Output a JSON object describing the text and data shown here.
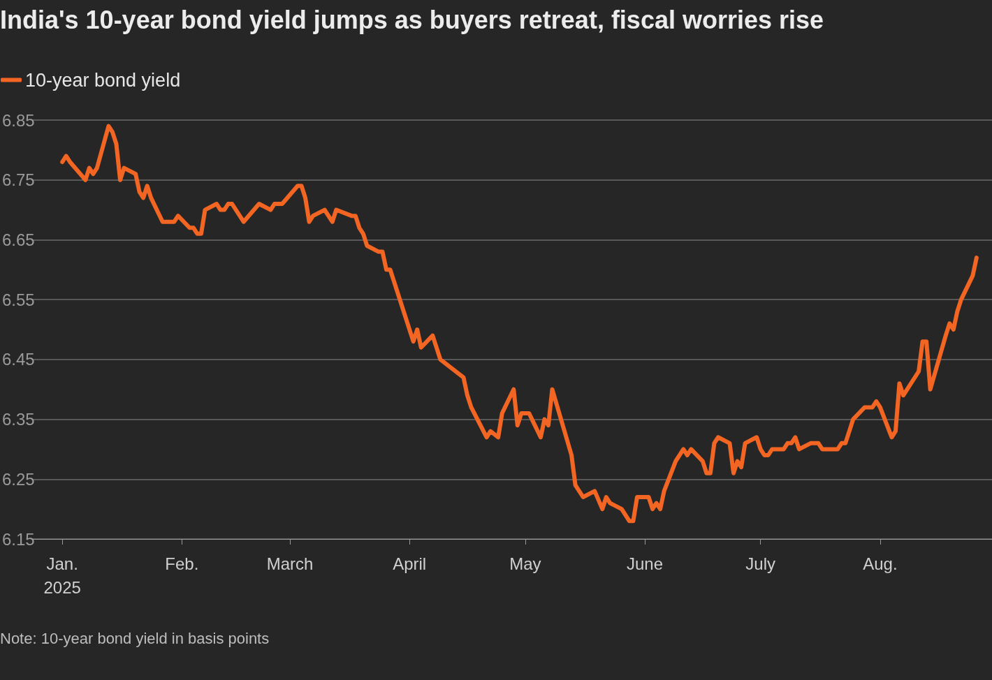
{
  "chart_data": {
    "type": "line",
    "title": "India's 10-year bond yield jumps as buyers retreat, fiscal worries rise",
    "annotations": [
      "Note: 10-year bond yield in basis points"
    ],
    "x": [
      "2025-01-01",
      "2025-01-02",
      "2025-01-03",
      "2025-01-07",
      "2025-01-08",
      "2025-01-09",
      "2025-01-10",
      "2025-01-13",
      "2025-01-14",
      "2025-01-15",
      "2025-01-16",
      "2025-01-17",
      "2025-01-20",
      "2025-01-21",
      "2025-01-22",
      "2025-01-23",
      "2025-01-24",
      "2025-01-27",
      "2025-01-30",
      "2025-01-31",
      "2025-02-03",
      "2025-02-04",
      "2025-02-05",
      "2025-02-06",
      "2025-02-07",
      "2025-02-10",
      "2025-02-11",
      "2025-02-12",
      "2025-02-13",
      "2025-02-14",
      "2025-02-17",
      "2025-02-21",
      "2025-02-24",
      "2025-02-25",
      "2025-02-27",
      "2025-03-03",
      "2025-03-04",
      "2025-03-05",
      "2025-03-06",
      "2025-03-07",
      "2025-03-10",
      "2025-03-12",
      "2025-03-13",
      "2025-03-17",
      "2025-03-18",
      "2025-03-19",
      "2025-03-20",
      "2025-03-21",
      "2025-03-24",
      "2025-03-25",
      "2025-03-26",
      "2025-03-27",
      "2025-04-02",
      "2025-04-03",
      "2025-04-04",
      "2025-04-07",
      "2025-04-09",
      "2025-04-15",
      "2025-04-16",
      "2025-04-17",
      "2025-04-21",
      "2025-04-22",
      "2025-04-24",
      "2025-04-25",
      "2025-04-28",
      "2025-04-29",
      "2025-04-30",
      "2025-05-02",
      "2025-05-05",
      "2025-05-06",
      "2025-05-07",
      "2025-05-08",
      "2025-05-13",
      "2025-05-14",
      "2025-05-16",
      "2025-05-19",
      "2025-05-21",
      "2025-05-22",
      "2025-05-23",
      "2025-05-26",
      "2025-05-28",
      "2025-05-29",
      "2025-05-30",
      "2025-06-02",
      "2025-06-03",
      "2025-06-04",
      "2025-06-05",
      "2025-06-06",
      "2025-06-09",
      "2025-06-11",
      "2025-06-12",
      "2025-06-13",
      "2025-06-16",
      "2025-06-17",
      "2025-06-18",
      "2025-06-19",
      "2025-06-20",
      "2025-06-23",
      "2025-06-24",
      "2025-06-25",
      "2025-06-26",
      "2025-06-27",
      "2025-06-30",
      "2025-07-01",
      "2025-07-02",
      "2025-07-03",
      "2025-07-04",
      "2025-07-07",
      "2025-07-08",
      "2025-07-09",
      "2025-07-10",
      "2025-07-11",
      "2025-07-14",
      "2025-07-16",
      "2025-07-17",
      "2025-07-21",
      "2025-07-22",
      "2025-07-23",
      "2025-07-25",
      "2025-07-28",
      "2025-07-30",
      "2025-07-31",
      "2025-08-01",
      "2025-08-04",
      "2025-08-05",
      "2025-08-06",
      "2025-08-07",
      "2025-08-11",
      "2025-08-12",
      "2025-08-13",
      "2025-08-14",
      "2025-08-18",
      "2025-08-19",
      "2025-08-20",
      "2025-08-21",
      "2025-08-22",
      "2025-08-25",
      "2025-08-26"
    ],
    "series": [
      {
        "name": "10-year bond yield",
        "color": "#f26522",
        "values": [
          6.78,
          6.79,
          6.78,
          6.75,
          6.77,
          6.76,
          6.77,
          6.84,
          6.83,
          6.81,
          6.75,
          6.77,
          6.76,
          6.73,
          6.72,
          6.74,
          6.72,
          6.68,
          6.68,
          6.69,
          6.67,
          6.67,
          6.66,
          6.66,
          6.7,
          6.71,
          6.7,
          6.7,
          6.71,
          6.71,
          6.68,
          6.71,
          6.7,
          6.71,
          6.71,
          6.74,
          6.74,
          6.72,
          6.68,
          6.69,
          6.7,
          6.68,
          6.7,
          6.69,
          6.69,
          6.67,
          6.66,
          6.64,
          6.63,
          6.63,
          6.6,
          6.6,
          6.48,
          6.5,
          6.47,
          6.49,
          6.45,
          6.42,
          6.39,
          6.37,
          6.32,
          6.33,
          6.32,
          6.36,
          6.4,
          6.34,
          6.36,
          6.36,
          6.32,
          6.35,
          6.34,
          6.4,
          6.29,
          6.24,
          6.22,
          6.23,
          6.2,
          6.22,
          6.21,
          6.2,
          6.18,
          6.18,
          6.22,
          6.22,
          6.2,
          6.21,
          6.2,
          6.23,
          6.28,
          6.3,
          6.29,
          6.3,
          6.28,
          6.26,
          6.26,
          6.31,
          6.32,
          6.31,
          6.26,
          6.28,
          6.27,
          6.31,
          6.32,
          6.3,
          6.29,
          6.29,
          6.3,
          6.3,
          6.31,
          6.31,
          6.32,
          6.3,
          6.31,
          6.31,
          6.3,
          6.3,
          6.31,
          6.31,
          6.35,
          6.37,
          6.37,
          6.38,
          6.37,
          6.32,
          6.33,
          6.41,
          6.39,
          6.43,
          6.48,
          6.48,
          6.4,
          6.49,
          6.51,
          6.5,
          6.53,
          6.55,
          6.59,
          6.62
        ]
      }
    ],
    "xlim": [
      "2024-12-24",
      "2025-08-30"
    ],
    "xticks": [
      {
        "value": "2025-01-01",
        "label": "Jan.\n2025"
      },
      {
        "value": "2025-02-01",
        "label": "Feb."
      },
      {
        "value": "2025-03-01",
        "label": "March"
      },
      {
        "value": "2025-04-01",
        "label": "April"
      },
      {
        "value": "2025-05-01",
        "label": "May"
      },
      {
        "value": "2025-06-01",
        "label": "June"
      },
      {
        "value": "2025-07-01",
        "label": "July"
      },
      {
        "value": "2025-08-01",
        "label": "Aug."
      }
    ],
    "ylim": [
      6.15,
      6.85
    ],
    "yticks": [
      6.15,
      6.25,
      6.35,
      6.45,
      6.55,
      6.65,
      6.75,
      6.85
    ],
    "grid": "y",
    "legend": "top left",
    "marker": "none",
    "line_style": "solid"
  }
}
